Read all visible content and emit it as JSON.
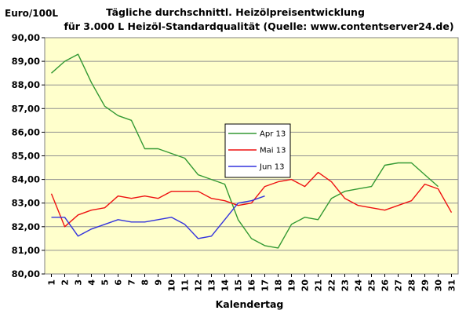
{
  "chart_data": {
    "type": "line",
    "title": "Tägliche durchschnittl. Heizölpreisentwicklung",
    "subtitle": "für 3.000 L Heizöl-Standardqualität (Quelle: www.contentserver24.de)",
    "y_unit": "Euro/100L",
    "xlabel": "Kalendertag",
    "ylabel": "",
    "ylim": [
      80,
      90
    ],
    "ytick_labels": [
      "80,00",
      "81,00",
      "82,00",
      "83,00",
      "84,00",
      "85,00",
      "86,00",
      "87,00",
      "88,00",
      "89,00",
      "90,00"
    ],
    "x": [
      1,
      2,
      3,
      4,
      5,
      6,
      7,
      8,
      9,
      10,
      11,
      12,
      13,
      14,
      15,
      16,
      17,
      18,
      19,
      20,
      21,
      22,
      23,
      24,
      25,
      26,
      27,
      28,
      29,
      30,
      31
    ],
    "grid": true,
    "legend_position": "center",
    "plot_background": "#ffffcc",
    "series": [
      {
        "name": "Apr 13",
        "color": "#339933",
        "values": [
          88.5,
          89.0,
          89.3,
          88.1,
          87.1,
          86.7,
          86.5,
          85.3,
          85.3,
          85.1,
          84.9,
          84.2,
          84.0,
          83.8,
          82.3,
          81.5,
          81.2,
          81.1,
          82.1,
          82.4,
          82.3,
          83.2,
          83.5,
          83.6,
          83.7,
          84.6,
          84.7,
          84.7,
          84.2,
          83.7,
          null
        ]
      },
      {
        "name": "Mai 13",
        "color": "#ee1111",
        "values": [
          83.4,
          82.0,
          82.5,
          82.7,
          82.8,
          83.3,
          83.2,
          83.3,
          83.2,
          83.5,
          83.5,
          83.5,
          83.2,
          83.1,
          82.9,
          83.0,
          83.7,
          83.9,
          84.0,
          83.7,
          84.3,
          83.9,
          83.2,
          82.9,
          82.8,
          82.7,
          82.9,
          83.1,
          83.8,
          83.6,
          82.6
        ]
      },
      {
        "name": "Jun 13",
        "color": "#3333dd",
        "values": [
          82.4,
          82.4,
          81.6,
          81.9,
          82.1,
          82.3,
          82.2,
          82.2,
          82.3,
          82.4,
          82.1,
          81.5,
          81.6,
          82.3,
          83.0,
          83.1,
          83.3,
          null,
          null,
          null,
          null,
          null,
          null,
          null,
          null,
          null,
          null,
          null,
          null,
          null,
          null
        ]
      }
    ]
  }
}
